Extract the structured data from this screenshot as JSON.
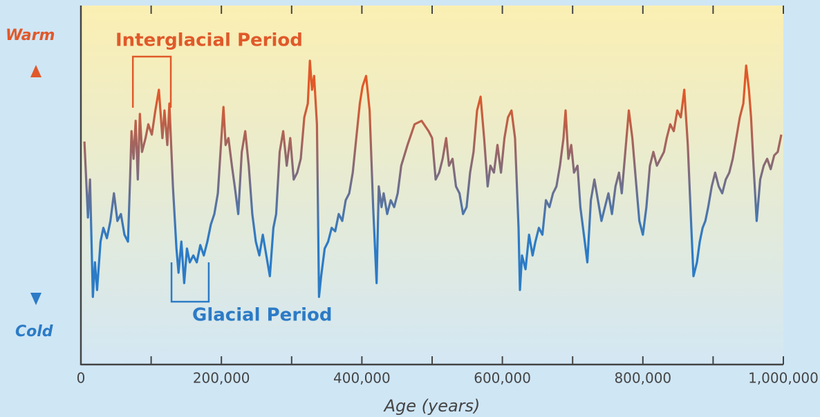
{
  "chart_data": {
    "type": "line",
    "xlabel": "Age (years)",
    "y_labels": {
      "top": "Warm",
      "bottom": "Cold"
    },
    "colors": [
      "#e0592a",
      "#2c7bc6"
    ],
    "xlim": [
      0,
      1000000
    ],
    "ylim": [
      0,
      520
    ],
    "xticks": [
      0,
      {
        "value": 200000,
        "label": "200,000"
      },
      {
        "value": 400000,
        "label": "400,000"
      },
      {
        "value": 600000,
        "label": "600,000"
      },
      {
        "value": 800000,
        "label": "800,000"
      },
      {
        "value": 1000000,
        "label": "1,000,000"
      }
    ],
    "xminor_ticks": [
      100000,
      300000,
      500000,
      700000,
      900000
    ],
    "annotations": [
      {
        "text": "Interglacial Period",
        "x": [
          74000,
          128000
        ],
        "color": "#e0592a"
      },
      {
        "text": "Glacial Period",
        "x": [
          129000,
          182000
        ],
        "color": "#2c7bc6"
      }
    ],
    "x": [
      5000,
      10000,
      13000,
      17000,
      20000,
      23000,
      28000,
      32000,
      37000,
      42000,
      47000,
      52000,
      57000,
      62000,
      67000,
      70000,
      72000,
      75000,
      78000,
      81000,
      84000,
      87000,
      92000,
      96000,
      101000,
      106000,
      111000,
      116000,
      119000,
      123000,
      126000,
      131000,
      136000,
      139000,
      143000,
      147000,
      151000,
      155000,
      160000,
      165000,
      170000,
      175000,
      180000,
      185000,
      190000,
      195000,
      200000,
      203000,
      206000,
      210000,
      215000,
      219000,
      224000,
      229000,
      234000,
      239000,
      244000,
      249000,
      254000,
      259000,
      264000,
      269000,
      274000,
      278000,
      283000,
      288000,
      293000,
      298000,
      303000,
      308000,
      313000,
      318000,
      323000,
      326000,
      329000,
      332000,
      336000,
      339000,
      342000,
      347000,
      352000,
      357000,
      362000,
      367000,
      372000,
      377000,
      382000,
      387000,
      392000,
      397000,
      401000,
      406000,
      411000,
      416000,
      421000,
      424000,
      428000,
      431000,
      436000,
      441000,
      446000,
      451000,
      456000,
      465000,
      475000,
      485000,
      495000,
      500000,
      505000,
      510000,
      515000,
      520000,
      524000,
      529000,
      534000,
      539000,
      544000,
      549000,
      554000,
      559000,
      564000,
      569000,
      574000,
      579000,
      583000,
      588000,
      593000,
      598000,
      603000,
      608000,
      613000,
      618000,
      623000,
      625000,
      628000,
      633000,
      638000,
      643000,
      647000,
      652000,
      657000,
      662000,
      667000,
      672000,
      677000,
      682000,
      687000,
      690000,
      694000,
      698000,
      702000,
      707000,
      711000,
      716000,
      721000,
      726000,
      731000,
      736000,
      741000,
      746000,
      751000,
      756000,
      761000,
      766000,
      770000,
      775000,
      780000,
      785000,
      790000,
      795000,
      800000,
      805000,
      810000,
      815000,
      820000,
      825000,
      830000,
      834000,
      839000,
      844000,
      849000,
      854000,
      859000,
      864000,
      869000,
      872000,
      877000,
      881000,
      885000,
      889000,
      893000,
      898000,
      903000,
      908000,
      913000,
      918000,
      923000,
      928000,
      933000,
      938000,
      943000,
      947000,
      951000,
      954000,
      957000,
      962000,
      967000,
      972000,
      977000,
      982000,
      987000,
      992000,
      997000
    ],
    "values": [
      323,
      213,
      268,
      98,
      148,
      108,
      178,
      198,
      183,
      208,
      248,
      208,
      218,
      188,
      178,
      268,
      338,
      298,
      353,
      268,
      363,
      308,
      328,
      348,
      333,
      368,
      398,
      328,
      368,
      318,
      378,
      258,
      168,
      133,
      178,
      118,
      168,
      148,
      158,
      148,
      173,
      158,
      178,
      203,
      218,
      248,
      328,
      373,
      318,
      328,
      288,
      258,
      218,
      308,
      338,
      288,
      218,
      178,
      158,
      188,
      158,
      128,
      198,
      218,
      308,
      338,
      288,
      328,
      268,
      278,
      298,
      358,
      378,
      440,
      398,
      418,
      348,
      98,
      128,
      168,
      178,
      198,
      193,
      218,
      208,
      238,
      248,
      278,
      328,
      378,
      403,
      418,
      368,
      228,
      118,
      258,
      228,
      248,
      218,
      238,
      228,
      248,
      288,
      318,
      348,
      353,
      338,
      328,
      268,
      278,
      298,
      328,
      288,
      298,
      258,
      248,
      218,
      228,
      278,
      308,
      368,
      388,
      328,
      258,
      288,
      278,
      318,
      278,
      328,
      358,
      368,
      328,
      198,
      108,
      158,
      138,
      188,
      158,
      178,
      198,
      188,
      238,
      228,
      248,
      258,
      288,
      328,
      368,
      298,
      318,
      278,
      288,
      228,
      188,
      148,
      238,
      268,
      238,
      208,
      228,
      248,
      218,
      258,
      278,
      248,
      308,
      368,
      328,
      268,
      208,
      188,
      228,
      288,
      308,
      288,
      298,
      308,
      328,
      348,
      338,
      368,
      358,
      398,
      318,
      198,
      128,
      148,
      178,
      198,
      208,
      228,
      258,
      278,
      258,
      248,
      268,
      278,
      298,
      328,
      358,
      378,
      433,
      398,
      358,
      298,
      208,
      268,
      288,
      298,
      283,
      303,
      308,
      333
    ]
  }
}
